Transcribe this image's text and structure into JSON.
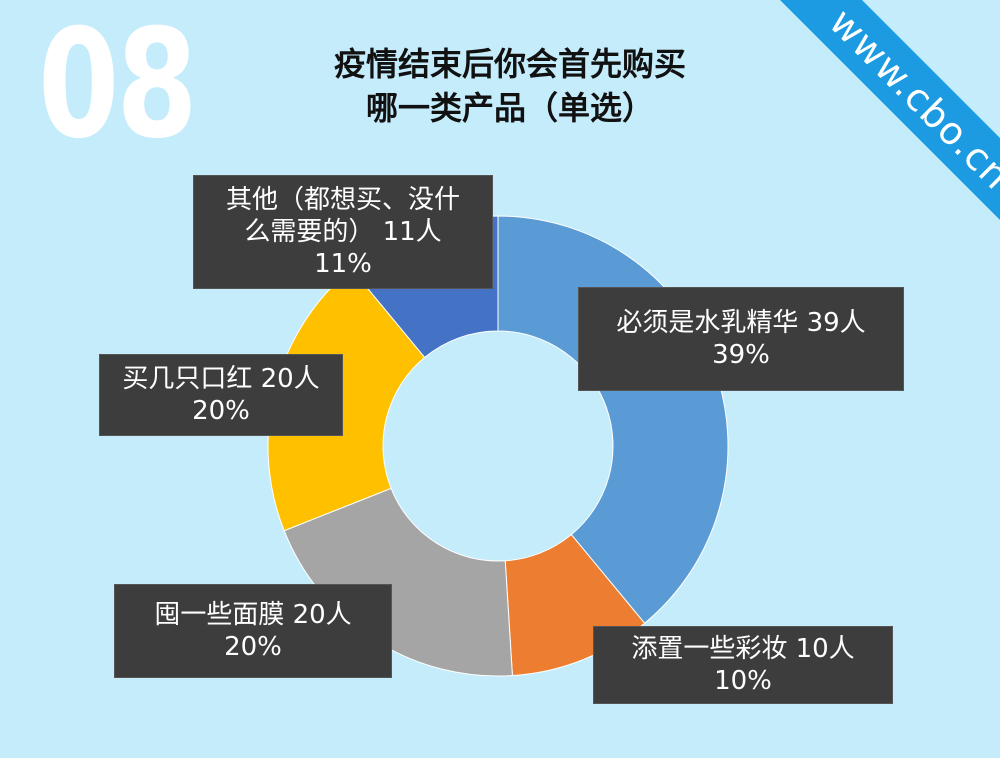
{
  "badge_number": "08",
  "title": {
    "line1": "疫情结束后你会首先购买",
    "line2": "哪一类产品（单选）"
  },
  "watermark": "www.cbo.cn",
  "chart_data": {
    "type": "pie",
    "donut": true,
    "slices": [
      {
        "name": "必须是水乳精华",
        "value": 39,
        "count_label": "39人",
        "percent_label": "39%",
        "color": "#5b9bd5"
      },
      {
        "name": "添置一些彩妆",
        "value": 10,
        "count_label": "10人",
        "percent_label": "10%",
        "color": "#ed7d31"
      },
      {
        "name": "囤一些面膜",
        "value": 20,
        "count_label": "20人",
        "percent_label": "20%",
        "color": "#a5a5a5"
      },
      {
        "name": "买几只口红",
        "value": 20,
        "count_label": "20人",
        "percent_label": "20%",
        "color": "#ffc000"
      },
      {
        "name": "其他（都想买、没什么需要的）",
        "value": 11,
        "count_label": "11人",
        "percent_label": "11%",
        "color": "#4472c4"
      }
    ]
  },
  "labels": {
    "l0": {
      "line1": "必须是水乳精华  39人",
      "line2": "39%"
    },
    "l1": {
      "line1": "添置一些彩妆 10人",
      "line2": "10%"
    },
    "l2": {
      "line1": "囤一些面膜 20人",
      "line2": "20%"
    },
    "l3": {
      "line1": "买几只口红 20人",
      "line2": "20%"
    },
    "l4": {
      "line1": "其他（都想买、没什",
      "line2": "么需要的） 11人",
      "line3": "11%"
    }
  }
}
